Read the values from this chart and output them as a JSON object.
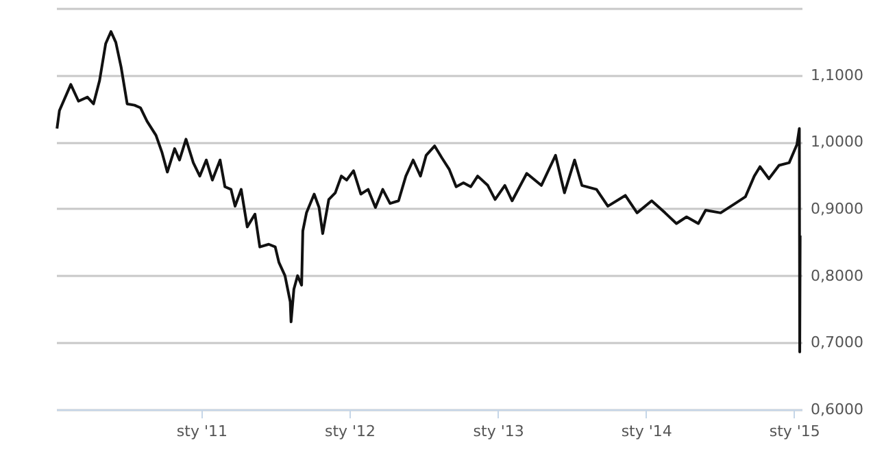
{
  "chart_data": {
    "type": "line",
    "grid": "y",
    "line_style": "solid",
    "xlim": [
      "2010-01-08",
      "2015-01-20"
    ],
    "ylim": [
      0.6,
      1.2
    ],
    "xticks": [
      {
        "value": "2011-01-01",
        "label": "sty '11"
      },
      {
        "value": "2012-01-01",
        "label": "sty '12"
      },
      {
        "value": "2013-01-01",
        "label": "sty '13"
      },
      {
        "value": "2014-01-01",
        "label": "sty '14"
      },
      {
        "value": "2015-01-01",
        "label": "sty '15"
      }
    ],
    "yticks": [
      {
        "value": 0.6,
        "label": "0,6000"
      },
      {
        "value": 0.7,
        "label": "0,7000"
      },
      {
        "value": 0.8,
        "label": "0,8000"
      },
      {
        "value": 0.9,
        "label": "0,9000"
      },
      {
        "value": 1.0,
        "label": "1,0000"
      },
      {
        "value": 1.1,
        "label": "1,1000"
      },
      {
        "value": 1.2,
        "label": null
      }
    ],
    "x": [
      "2010-01-10",
      "2010-01-16",
      "2010-02-13",
      "2010-03-04",
      "2010-03-26",
      "2010-04-10",
      "2010-04-25",
      "2010-05-10",
      "2010-05-23",
      "2010-06-04",
      "2010-06-17",
      "2010-07-02",
      "2010-07-20",
      "2010-08-04",
      "2010-08-20",
      "2010-09-11",
      "2010-09-26",
      "2010-10-09",
      "2010-10-27",
      "2010-11-08",
      "2010-11-24",
      "2010-12-12",
      "2010-12-28",
      "2011-01-13",
      "2011-01-28",
      "2011-02-16",
      "2011-02-28",
      "2011-03-15",
      "2011-03-25",
      "2011-04-09",
      "2011-04-24",
      "2011-05-13",
      "2011-05-25",
      "2011-06-16",
      "2011-07-02",
      "2011-07-11",
      "2011-07-26",
      "2011-08-08",
      "2011-08-10",
      "2011-08-17",
      "2011-08-26",
      "2011-09-05",
      "2011-09-08",
      "2011-09-17",
      "2011-10-06",
      "2011-10-18",
      "2011-10-27",
      "2011-11-11",
      "2011-11-27",
      "2011-12-12",
      "2011-12-25",
      "2012-01-11",
      "2012-01-29",
      "2012-02-16",
      "2012-03-05",
      "2012-03-23",
      "2012-04-10",
      "2012-05-01",
      "2012-05-19",
      "2012-06-06",
      "2012-06-24",
      "2012-07-08",
      "2012-07-29",
      "2012-08-16",
      "2012-09-03",
      "2012-09-20",
      "2012-10-08",
      "2012-10-26",
      "2012-11-12",
      "2012-12-07",
      "2012-12-25",
      "2013-01-18",
      "2013-02-05",
      "2013-03-13",
      "2013-04-18",
      "2013-05-23",
      "2013-06-14",
      "2013-07-09",
      "2013-07-27",
      "2013-09-01",
      "2013-09-29",
      "2013-11-11",
      "2013-12-10",
      "2014-01-15",
      "2014-02-17",
      "2014-03-17",
      "2014-04-11",
      "2014-05-10",
      "2014-05-28",
      "2014-07-04",
      "2014-08-09",
      "2014-09-03",
      "2014-09-25",
      "2014-10-09",
      "2014-10-31",
      "2014-11-25",
      "2014-12-20",
      "2015-01-08",
      "2015-01-14",
      "2015-01-15",
      "2015-01-16"
    ],
    "series": [
      {
        "color": "#111111",
        "values": [
          1.02,
          1.047,
          1.086,
          1.061,
          1.067,
          1.057,
          1.092,
          1.147,
          1.165,
          1.149,
          1.112,
          1.057,
          1.055,
          1.051,
          1.031,
          1.01,
          0.984,
          0.955,
          0.99,
          0.973,
          1.004,
          0.969,
          0.949,
          0.973,
          0.943,
          0.973,
          0.933,
          0.929,
          0.904,
          0.929,
          0.873,
          0.892,
          0.843,
          0.847,
          0.843,
          0.82,
          0.8,
          0.761,
          0.731,
          0.78,
          0.8,
          0.786,
          0.867,
          0.894,
          0.922,
          0.902,
          0.863,
          0.914,
          0.924,
          0.949,
          0.943,
          0.957,
          0.922,
          0.929,
          0.902,
          0.929,
          0.908,
          0.912,
          0.949,
          0.973,
          0.949,
          0.98,
          0.994,
          0.976,
          0.959,
          0.933,
          0.939,
          0.933,
          0.949,
          0.935,
          0.914,
          0.935,
          0.912,
          0.953,
          0.935,
          0.98,
          0.924,
          0.973,
          0.935,
          0.929,
          0.904,
          0.92,
          0.894,
          0.912,
          0.894,
          0.878,
          0.888,
          0.878,
          0.898,
          0.894,
          0.908,
          0.918,
          0.949,
          0.963,
          0.945,
          0.965,
          0.969,
          0.996,
          1.02,
          0.686,
          0.86
        ]
      }
    ]
  }
}
